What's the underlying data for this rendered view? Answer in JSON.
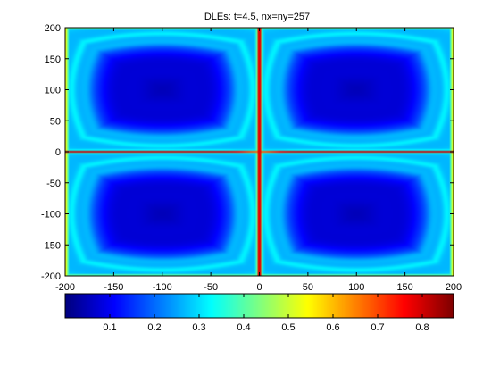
{
  "chart_data": {
    "type": "heatmap",
    "title": "DLEs: t=4.5, nx=ny=257",
    "xlabel": "",
    "ylabel": "",
    "xlim": [
      -200,
      200
    ],
    "ylim": [
      -200,
      200
    ],
    "xticks": [
      -200,
      -150,
      -100,
      -50,
      0,
      50,
      100,
      150,
      200
    ],
    "yticks": [
      200,
      150,
      100,
      50,
      0,
      -50,
      -100,
      -150,
      -200
    ],
    "colormap": "jet",
    "colorbar": {
      "orientation": "horizontal",
      "placement": "bottom",
      "range": [
        0,
        0.87
      ],
      "ticks": [
        0.1,
        0.2,
        0.3,
        0.4,
        0.5,
        0.6,
        0.7,
        0.8
      ]
    },
    "grid": false,
    "field": {
      "description_cells": "four counter-rotating cells",
      "cell_centers": [
        [
          -100,
          100
        ],
        [
          100,
          100
        ],
        [
          -100,
          -100
        ],
        [
          100,
          -100
        ]
      ],
      "cell_min_value": 0.05,
      "background_value": 0.3,
      "ridge_lines": [
        {
          "axis": "x",
          "at": 0,
          "value": 0.85
        },
        {
          "axis": "y",
          "at": 0,
          "value": 0.8
        }
      ]
    }
  }
}
